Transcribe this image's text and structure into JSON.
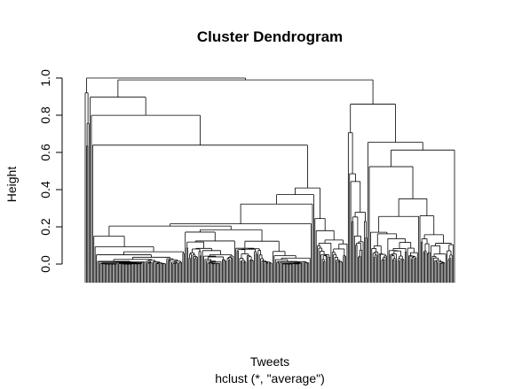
{
  "chart_data": {
    "type": "dendrogram",
    "title": "Cluster Dendrogram",
    "xlabel": "Tweets",
    "ylabel": "Height",
    "subtitle": "hclust (*, \"average\")",
    "ylim": [
      0,
      1
    ],
    "yticks": [
      "0.0",
      "0.2",
      "0.4",
      "0.6",
      "0.8",
      "1.0"
    ],
    "grid": false,
    "legend": "none",
    "method": "average",
    "leaf_count_estimate": 300,
    "merge_height_range": [
      0.0,
      1.0
    ]
  }
}
